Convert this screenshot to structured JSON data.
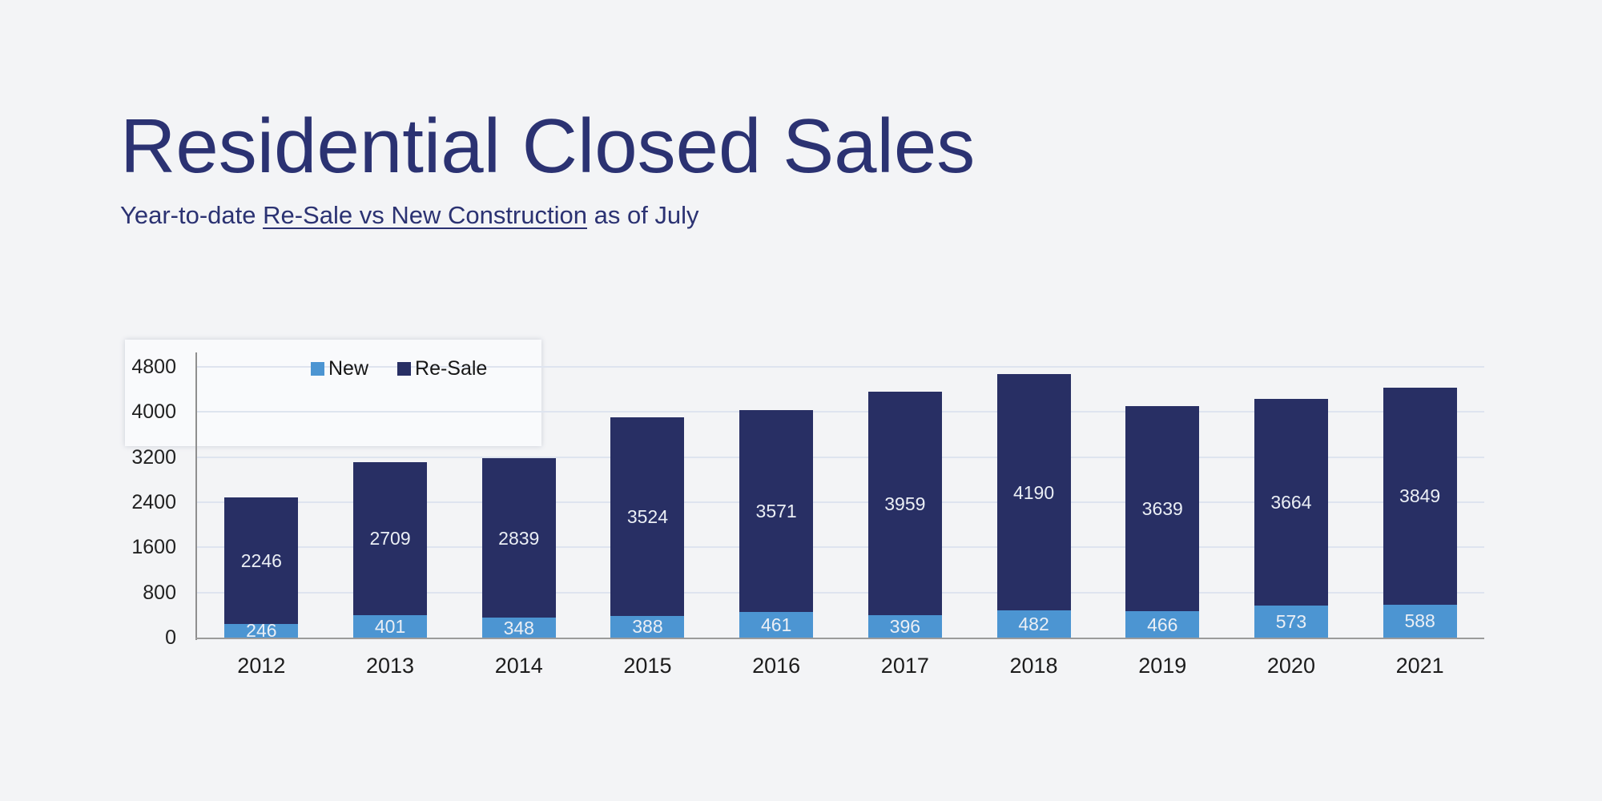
{
  "header": {
    "title": "Residential Closed Sales",
    "subtitle_prefix": "Year-to-date ",
    "subtitle_underline": "Re-Sale vs New Construction",
    "subtitle_suffix": " as of July"
  },
  "colors": {
    "background": "#F3F4F6",
    "title": "#2B3272",
    "gridline": "#DEE4EF",
    "axis": "#9B9B9B",
    "bar_value_label": "#EBEFF5",
    "series_new": "#4C95D2",
    "series_resale": "#282F64"
  },
  "chart_data": {
    "type": "bar",
    "stacked": true,
    "title": "Residential Closed Sales",
    "subtitle": "Year-to-date Re-Sale vs New Construction as of July",
    "categories": [
      "2012",
      "2013",
      "2014",
      "2015",
      "2016",
      "2017",
      "2018",
      "2019",
      "2020",
      "2021"
    ],
    "series": [
      {
        "name": "New",
        "color": "#4C95D2",
        "values": [
          246,
          401,
          348,
          388,
          461,
          396,
          482,
          466,
          573,
          588
        ]
      },
      {
        "name": "Re-Sale",
        "color": "#282F64",
        "values": [
          2246,
          2709,
          2839,
          3524,
          3571,
          3959,
          4190,
          3639,
          3664,
          3849
        ]
      }
    ],
    "xlabel": "",
    "ylabel": "",
    "ylim": [
      0,
      4800
    ],
    "yticks": [
      0,
      800,
      1600,
      2400,
      3200,
      4000,
      4800
    ],
    "grid": true,
    "legend_position": "top-inside",
    "value_labels": "inside-segments"
  }
}
